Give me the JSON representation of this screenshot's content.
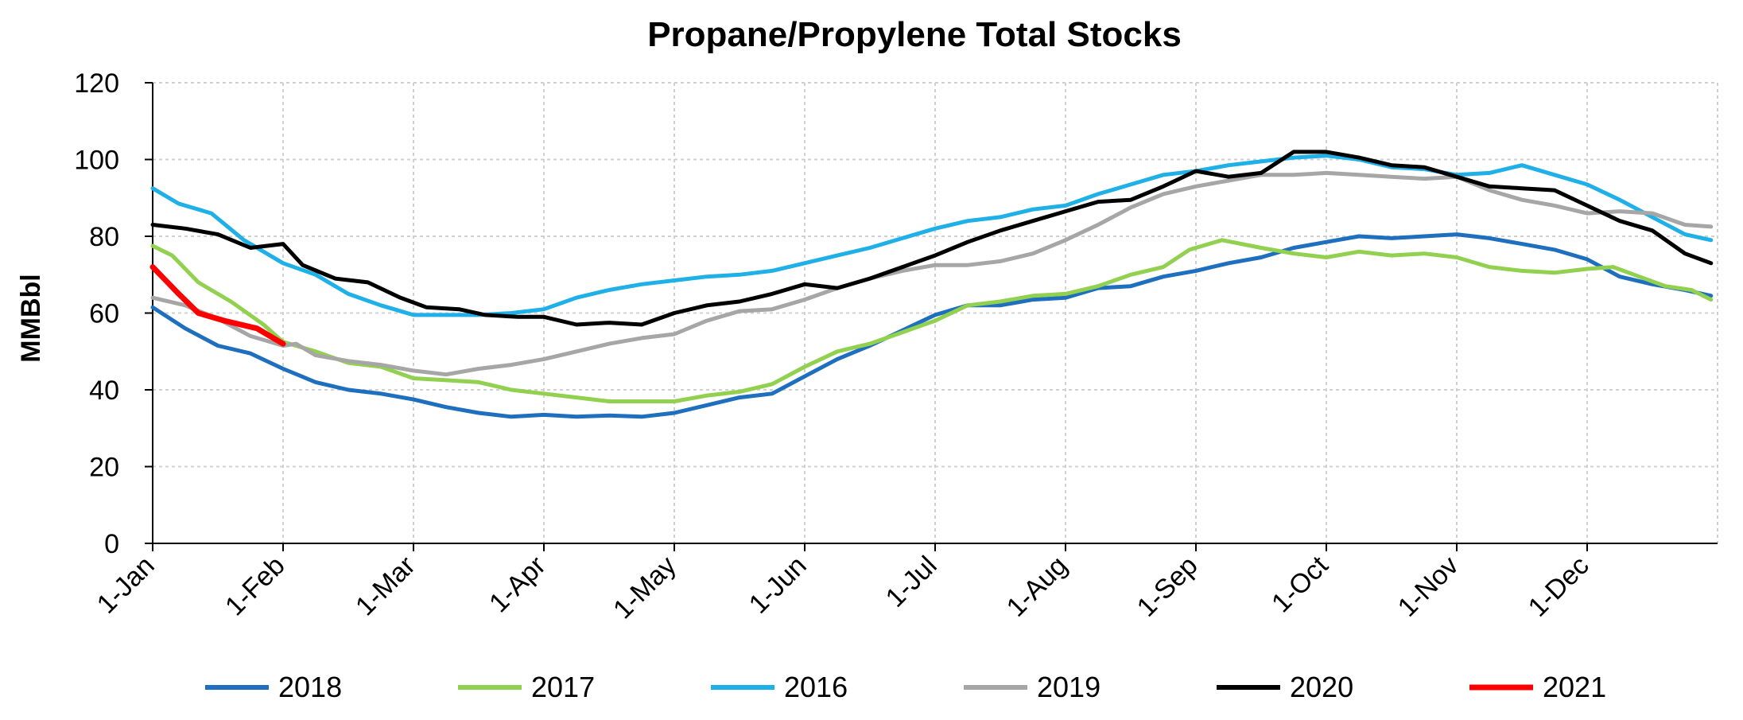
{
  "chart_data": {
    "type": "line",
    "title": "Propane/Propylene Total Stocks",
    "ylabel": "MMBbl",
    "xlabel": "",
    "ylim": [
      0,
      120
    ],
    "yticks": [
      0,
      20,
      40,
      60,
      80,
      100,
      120
    ],
    "x_unit": "month",
    "xlim": [
      0,
      12
    ],
    "categories": [
      "1-Jan",
      "1-Feb",
      "1-Mar",
      "1-Apr",
      "1-May",
      "1-Jun",
      "1-Jul",
      "1-Aug",
      "1-Sep",
      "1-Oct",
      "1-Nov",
      "1-Dec"
    ],
    "grid": true,
    "legend_position": "bottom",
    "series": [
      {
        "name": "2018",
        "color": "#1f6fbf",
        "points": [
          [
            0,
            61.5
          ],
          [
            0.25,
            56
          ],
          [
            0.5,
            51.5
          ],
          [
            0.75,
            49.5
          ],
          [
            1.0,
            45.5
          ],
          [
            1.25,
            42
          ],
          [
            1.5,
            40
          ],
          [
            1.75,
            39
          ],
          [
            2.0,
            37.5
          ],
          [
            2.25,
            35.5
          ],
          [
            2.5,
            34
          ],
          [
            2.75,
            33
          ],
          [
            3.0,
            33.5
          ],
          [
            3.25,
            33
          ],
          [
            3.5,
            33.3
          ],
          [
            3.75,
            33
          ],
          [
            4.0,
            34
          ],
          [
            4.25,
            36
          ],
          [
            4.5,
            38
          ],
          [
            4.75,
            39
          ],
          [
            5.0,
            43.5
          ],
          [
            5.25,
            48
          ],
          [
            5.5,
            51.5
          ],
          [
            5.75,
            55.5
          ],
          [
            6.0,
            59.5
          ],
          [
            6.25,
            62
          ],
          [
            6.5,
            62
          ],
          [
            6.75,
            63.5
          ],
          [
            7.0,
            64
          ],
          [
            7.25,
            66.5
          ],
          [
            7.5,
            67
          ],
          [
            7.75,
            69.5
          ],
          [
            8.0,
            71
          ],
          [
            8.25,
            73
          ],
          [
            8.5,
            74.5
          ],
          [
            8.75,
            77
          ],
          [
            9.0,
            78.5
          ],
          [
            9.25,
            80
          ],
          [
            9.5,
            79.5
          ],
          [
            9.75,
            80
          ],
          [
            10.0,
            80.5
          ],
          [
            10.25,
            79.5
          ],
          [
            10.5,
            78
          ],
          [
            10.75,
            76.5
          ],
          [
            11.0,
            74
          ],
          [
            11.25,
            69.5
          ],
          [
            11.5,
            67.5
          ],
          [
            11.75,
            66
          ],
          [
            11.95,
            64.5
          ]
        ]
      },
      {
        "name": "2017",
        "color": "#92d050",
        "points": [
          [
            0,
            77.5
          ],
          [
            0.15,
            75
          ],
          [
            0.35,
            68
          ],
          [
            0.6,
            63
          ],
          [
            0.85,
            57
          ],
          [
            1.0,
            52.5
          ],
          [
            1.25,
            50
          ],
          [
            1.5,
            47
          ],
          [
            1.75,
            46
          ],
          [
            2.0,
            43
          ],
          [
            2.25,
            42.5
          ],
          [
            2.5,
            42
          ],
          [
            2.75,
            40
          ],
          [
            3.0,
            39
          ],
          [
            3.25,
            38
          ],
          [
            3.5,
            37
          ],
          [
            3.75,
            37
          ],
          [
            4.0,
            37
          ],
          [
            4.25,
            38.5
          ],
          [
            4.5,
            39.5
          ],
          [
            4.75,
            41.5
          ],
          [
            5.0,
            46
          ],
          [
            5.25,
            50
          ],
          [
            5.5,
            52
          ],
          [
            5.75,
            55
          ],
          [
            6.0,
            58
          ],
          [
            6.25,
            62
          ],
          [
            6.5,
            63
          ],
          [
            6.75,
            64.5
          ],
          [
            7.0,
            65
          ],
          [
            7.25,
            67
          ],
          [
            7.5,
            70
          ],
          [
            7.75,
            72
          ],
          [
            7.95,
            76.5
          ],
          [
            8.2,
            79
          ],
          [
            8.5,
            77
          ],
          [
            8.75,
            75.5
          ],
          [
            9.0,
            74.5
          ],
          [
            9.25,
            76
          ],
          [
            9.5,
            75
          ],
          [
            9.75,
            75.5
          ],
          [
            10.0,
            74.5
          ],
          [
            10.25,
            72
          ],
          [
            10.5,
            71
          ],
          [
            10.75,
            70.5
          ],
          [
            11.0,
            71.5
          ],
          [
            11.2,
            72
          ],
          [
            11.4,
            69.5
          ],
          [
            11.6,
            67
          ],
          [
            11.8,
            66
          ],
          [
            11.95,
            63.5
          ]
        ]
      },
      {
        "name": "2016",
        "color": "#1fb0e8",
        "points": [
          [
            0,
            92.5
          ],
          [
            0.2,
            88.5
          ],
          [
            0.45,
            86
          ],
          [
            0.7,
            79
          ],
          [
            1.0,
            73
          ],
          [
            1.25,
            70
          ],
          [
            1.5,
            65
          ],
          [
            1.75,
            62
          ],
          [
            2.0,
            59.5
          ],
          [
            2.25,
            59.5
          ],
          [
            2.5,
            59.5
          ],
          [
            2.75,
            60
          ],
          [
            3.0,
            61
          ],
          [
            3.25,
            64
          ],
          [
            3.5,
            66
          ],
          [
            3.75,
            67.5
          ],
          [
            4.0,
            68.5
          ],
          [
            4.25,
            69.5
          ],
          [
            4.5,
            70
          ],
          [
            4.75,
            71
          ],
          [
            5.0,
            73
          ],
          [
            5.25,
            75
          ],
          [
            5.5,
            77
          ],
          [
            5.75,
            79.5
          ],
          [
            6.0,
            82
          ],
          [
            6.25,
            84
          ],
          [
            6.5,
            85
          ],
          [
            6.75,
            87
          ],
          [
            7.0,
            88
          ],
          [
            7.25,
            91
          ],
          [
            7.5,
            93.5
          ],
          [
            7.75,
            96
          ],
          [
            8.0,
            97
          ],
          [
            8.25,
            98.5
          ],
          [
            8.5,
            99.5
          ],
          [
            8.75,
            100.5
          ],
          [
            9.0,
            101
          ],
          [
            9.25,
            100
          ],
          [
            9.5,
            98
          ],
          [
            9.75,
            97.5
          ],
          [
            10.0,
            96
          ],
          [
            10.25,
            96.5
          ],
          [
            10.5,
            98.5
          ],
          [
            10.75,
            96
          ],
          [
            11.0,
            93.5
          ],
          [
            11.25,
            89.5
          ],
          [
            11.5,
            85
          ],
          [
            11.75,
            80.5
          ],
          [
            11.95,
            79
          ]
        ]
      },
      {
        "name": "2019",
        "color": "#a6a6a6",
        "points": [
          [
            0,
            64
          ],
          [
            0.25,
            62
          ],
          [
            0.5,
            58.5
          ],
          [
            0.75,
            54
          ],
          [
            1.0,
            51.5
          ],
          [
            1.1,
            52
          ],
          [
            1.25,
            49
          ],
          [
            1.5,
            47.5
          ],
          [
            1.75,
            46.5
          ],
          [
            2.0,
            45
          ],
          [
            2.25,
            44
          ],
          [
            2.5,
            45.5
          ],
          [
            2.75,
            46.5
          ],
          [
            3.0,
            48
          ],
          [
            3.25,
            50
          ],
          [
            3.5,
            52
          ],
          [
            3.75,
            53.5
          ],
          [
            4.0,
            54.5
          ],
          [
            4.25,
            58
          ],
          [
            4.5,
            60.5
          ],
          [
            4.75,
            61
          ],
          [
            5.0,
            63.5
          ],
          [
            5.25,
            66.5
          ],
          [
            5.5,
            69
          ],
          [
            5.75,
            71
          ],
          [
            6.0,
            72.5
          ],
          [
            6.25,
            72.5
          ],
          [
            6.5,
            73.5
          ],
          [
            6.75,
            75.5
          ],
          [
            7.0,
            79
          ],
          [
            7.25,
            83
          ],
          [
            7.5,
            87.5
          ],
          [
            7.75,
            91
          ],
          [
            8.0,
            93
          ],
          [
            8.25,
            94.5
          ],
          [
            8.5,
            96
          ],
          [
            8.75,
            96
          ],
          [
            9.0,
            96.5
          ],
          [
            9.25,
            96
          ],
          [
            9.5,
            95.5
          ],
          [
            9.75,
            95
          ],
          [
            10.0,
            95.5
          ],
          [
            10.25,
            92
          ],
          [
            10.5,
            89.5
          ],
          [
            10.75,
            88
          ],
          [
            11.0,
            86
          ],
          [
            11.25,
            86.5
          ],
          [
            11.5,
            86
          ],
          [
            11.75,
            83
          ],
          [
            11.95,
            82.5
          ]
        ]
      },
      {
        "name": "2020",
        "color": "#000000",
        "points": [
          [
            0,
            83
          ],
          [
            0.25,
            82
          ],
          [
            0.5,
            80.5
          ],
          [
            0.75,
            77
          ],
          [
            1.0,
            78
          ],
          [
            1.15,
            72.5
          ],
          [
            1.4,
            69
          ],
          [
            1.65,
            68
          ],
          [
            1.9,
            64
          ],
          [
            2.1,
            61.5
          ],
          [
            2.35,
            61
          ],
          [
            2.55,
            59.5
          ],
          [
            2.8,
            59
          ],
          [
            3.0,
            59
          ],
          [
            3.25,
            57
          ],
          [
            3.5,
            57.5
          ],
          [
            3.75,
            57
          ],
          [
            4.0,
            60
          ],
          [
            4.25,
            62
          ],
          [
            4.5,
            63
          ],
          [
            4.75,
            65
          ],
          [
            5.0,
            67.5
          ],
          [
            5.25,
            66.5
          ],
          [
            5.5,
            69
          ],
          [
            5.75,
            72
          ],
          [
            6.0,
            75
          ],
          [
            6.25,
            78.5
          ],
          [
            6.5,
            81.5
          ],
          [
            6.75,
            84
          ],
          [
            7.0,
            86.5
          ],
          [
            7.25,
            89
          ],
          [
            7.5,
            89.5
          ],
          [
            7.75,
            93
          ],
          [
            8.0,
            97
          ],
          [
            8.25,
            95.5
          ],
          [
            8.5,
            96.5
          ],
          [
            8.75,
            102
          ],
          [
            9.0,
            102
          ],
          [
            9.25,
            100.5
          ],
          [
            9.5,
            98.5
          ],
          [
            9.75,
            98
          ],
          [
            10.0,
            95.5
          ],
          [
            10.25,
            93
          ],
          [
            10.5,
            92.5
          ],
          [
            10.75,
            92
          ],
          [
            11.0,
            88
          ],
          [
            11.25,
            84
          ],
          [
            11.5,
            81.5
          ],
          [
            11.75,
            75.5
          ],
          [
            11.95,
            73
          ]
        ]
      },
      {
        "name": "2021",
        "color": "#ff0000",
        "points": [
          [
            0,
            72
          ],
          [
            0.1,
            68.5
          ],
          [
            0.2,
            65
          ],
          [
            0.35,
            60
          ],
          [
            0.55,
            58
          ],
          [
            0.8,
            56
          ],
          [
            1.0,
            52
          ]
        ]
      }
    ]
  }
}
